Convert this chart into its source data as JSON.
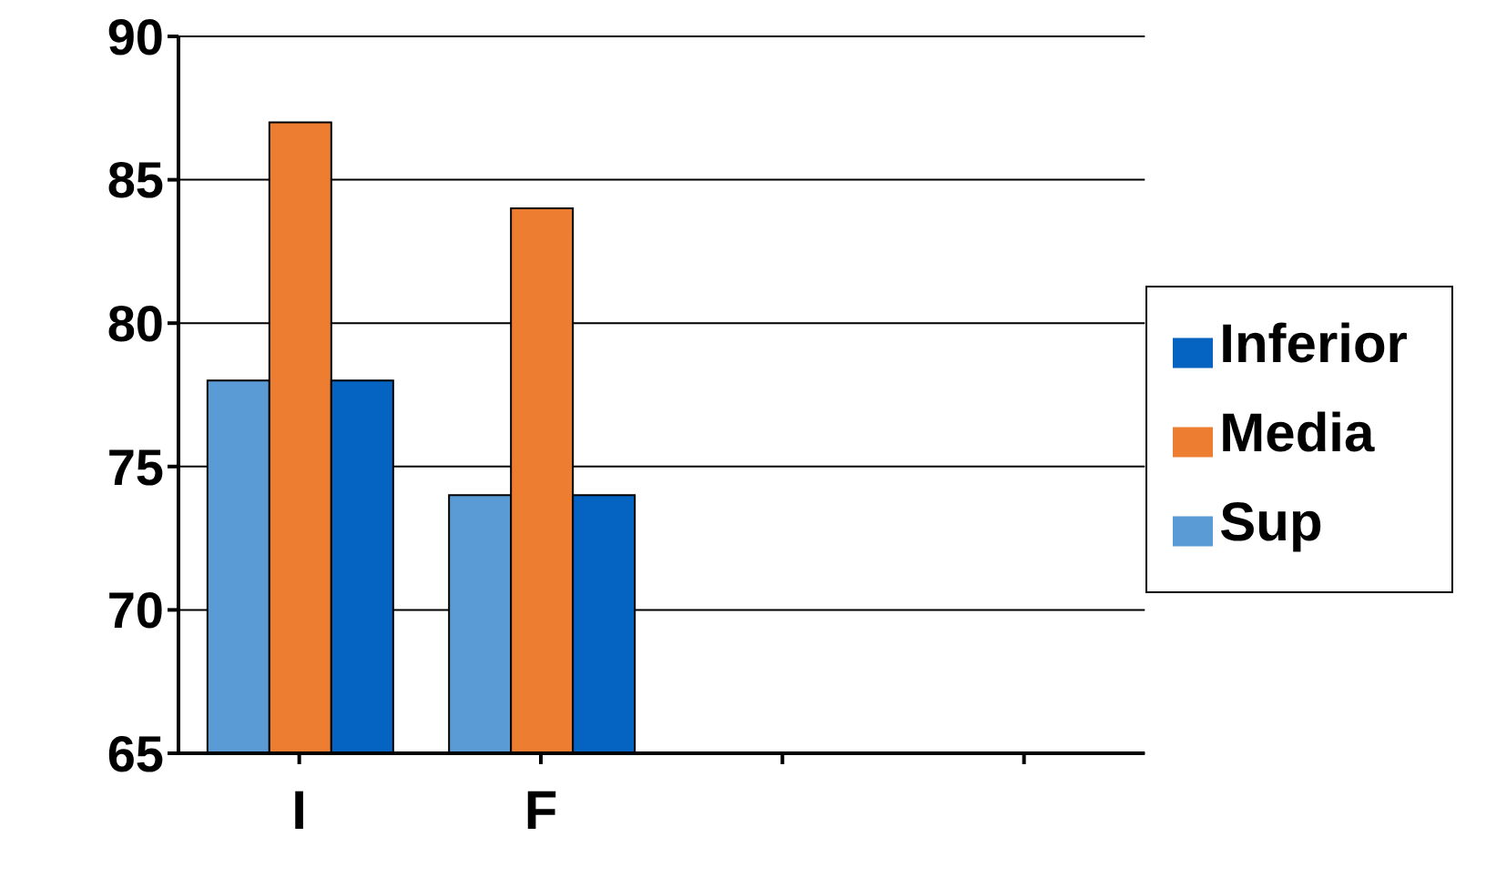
{
  "chart_data": {
    "type": "bar",
    "categories": [
      "I",
      "F",
      null,
      null
    ],
    "series": [
      {
        "name": "Sup",
        "color": "#5b9bd5",
        "values": [
          78,
          74,
          null,
          null
        ]
      },
      {
        "name": "Media",
        "color": "#ed7d31",
        "values": [
          87,
          84,
          null,
          null
        ]
      },
      {
        "name": "Inferior",
        "color": "#0563c1",
        "values": [
          78,
          74,
          null,
          null
        ]
      }
    ],
    "ylim": [
      65,
      90
    ],
    "yticks": [
      65,
      70,
      75,
      80,
      85,
      90
    ],
    "grid": "y",
    "legend": "right"
  }
}
